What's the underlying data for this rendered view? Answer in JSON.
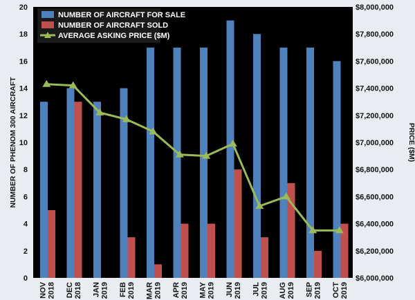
{
  "chart_data": {
    "type": "bar",
    "categories": [
      [
        "NOV",
        "2018"
      ],
      [
        "DEC",
        "2018"
      ],
      [
        "JAN",
        "2019"
      ],
      [
        "FEB",
        "2019"
      ],
      [
        "MAR",
        "2019"
      ],
      [
        "APR",
        "2019"
      ],
      [
        "MAY",
        "2019"
      ],
      [
        "JUN",
        "2019"
      ],
      [
        "JUL",
        "2019"
      ],
      [
        "AUG",
        "2019"
      ],
      [
        "SEP",
        "2019"
      ],
      [
        "OCT",
        "2019"
      ]
    ],
    "series": [
      {
        "name": "NUMBER OF AIRCRAFT FOR SALE",
        "type": "bar",
        "axis": "left",
        "color": "#4f81bd",
        "values": [
          13,
          14,
          13,
          14,
          17,
          17,
          17,
          19,
          18,
          17,
          17,
          16
        ]
      },
      {
        "name": "NUMBER OF AIRCRAFT SOLD",
        "type": "bar",
        "axis": "left",
        "color": "#c0504d",
        "values": [
          5,
          13,
          0,
          3,
          1,
          4,
          4,
          8,
          3,
          7,
          2,
          4
        ]
      },
      {
        "name": "AVERAGE ASKING PRICE ($M)",
        "type": "line",
        "axis": "right",
        "color": "#9bbb59",
        "marker": "triangle",
        "values": [
          7430000,
          7420000,
          7220000,
          7170000,
          7080000,
          6910000,
          6900000,
          6990000,
          6530000,
          6600000,
          6350000,
          6350000
        ]
      }
    ],
    "ylabel": "NUMBER OF PHENOM 300 AIRCRAFT",
    "y2label": "PRICE ($M)",
    "ylim": [
      0,
      20
    ],
    "yticks": [
      0,
      2,
      4,
      6,
      8,
      10,
      12,
      14,
      16,
      18,
      20
    ],
    "y2lim": [
      6000000,
      8000000
    ],
    "y2ticks": [
      "$6,000,000",
      "$6,200,000",
      "$6,400,000",
      "$6,600,000",
      "$6,800,000",
      "$7,000,000",
      "$7,200,000",
      "$7,400,000",
      "$7,600,000",
      "$7,800,000",
      "$8,000,000"
    ],
    "grid": false,
    "legend": "top-left",
    "plot_background": "#000000"
  }
}
